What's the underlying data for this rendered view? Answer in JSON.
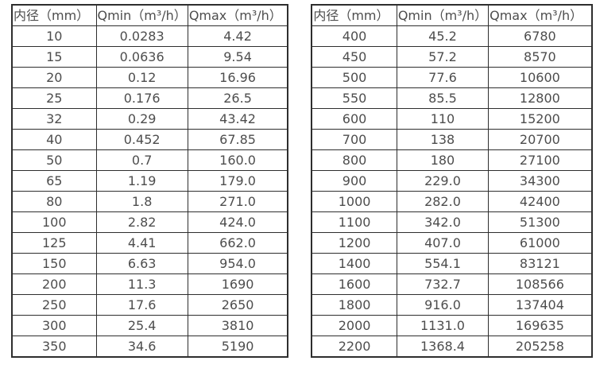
{
  "page": {
    "background_color": "#ffffff",
    "text_color": "#4d4d4d",
    "border_color": "#2e2e2e"
  },
  "chart_data": [
    {
      "type": "table",
      "title": "",
      "columns": [
        "内径（mm）",
        "Qmin（m³/h）",
        "Qmax（m³/h）"
      ],
      "rows": [
        [
          "10",
          "0.0283",
          "4.42"
        ],
        [
          "15",
          "0.0636",
          "9.54"
        ],
        [
          "20",
          "0.12",
          "16.96"
        ],
        [
          "25",
          "0.176",
          "26.5"
        ],
        [
          "32",
          "0.29",
          "43.42"
        ],
        [
          "40",
          "0.452",
          "67.85"
        ],
        [
          "50",
          "0.7",
          "160.0"
        ],
        [
          "65",
          "1.19",
          "179.0"
        ],
        [
          "80",
          "1.8",
          "271.0"
        ],
        [
          "100",
          "2.82",
          "424.0"
        ],
        [
          "125",
          "4.41",
          "662.0"
        ],
        [
          "150",
          "6.63",
          "954.0"
        ],
        [
          "200",
          "11.3",
          "1690"
        ],
        [
          "250",
          "17.6",
          "2650"
        ],
        [
          "300",
          "25.4",
          "3810"
        ],
        [
          "350",
          "34.6",
          "5190"
        ]
      ]
    },
    {
      "type": "table",
      "title": "",
      "columns": [
        "内径（mm）",
        "Qmin（m³/h）",
        "Qmax（m³/h）"
      ],
      "rows": [
        [
          "400",
          "45.2",
          "6780"
        ],
        [
          "450",
          "57.2",
          "8570"
        ],
        [
          "500",
          "77.6",
          "10600"
        ],
        [
          "550",
          "85.5",
          "12800"
        ],
        [
          "600",
          "110",
          "15200"
        ],
        [
          "700",
          "138",
          "20700"
        ],
        [
          "800",
          "180",
          "27100"
        ],
        [
          "900",
          "229.0",
          "34300"
        ],
        [
          "1000",
          "282.0",
          "42400"
        ],
        [
          "1100",
          "342.0",
          "51300"
        ],
        [
          "1200",
          "407.0",
          "61000"
        ],
        [
          "1400",
          "554.1",
          "83121"
        ],
        [
          "1600",
          "732.7",
          "108566"
        ],
        [
          "1800",
          "916.0",
          "137404"
        ],
        [
          "2000",
          "1131.0",
          "169635"
        ],
        [
          "2200",
          "1368.4",
          "205258"
        ]
      ]
    }
  ]
}
